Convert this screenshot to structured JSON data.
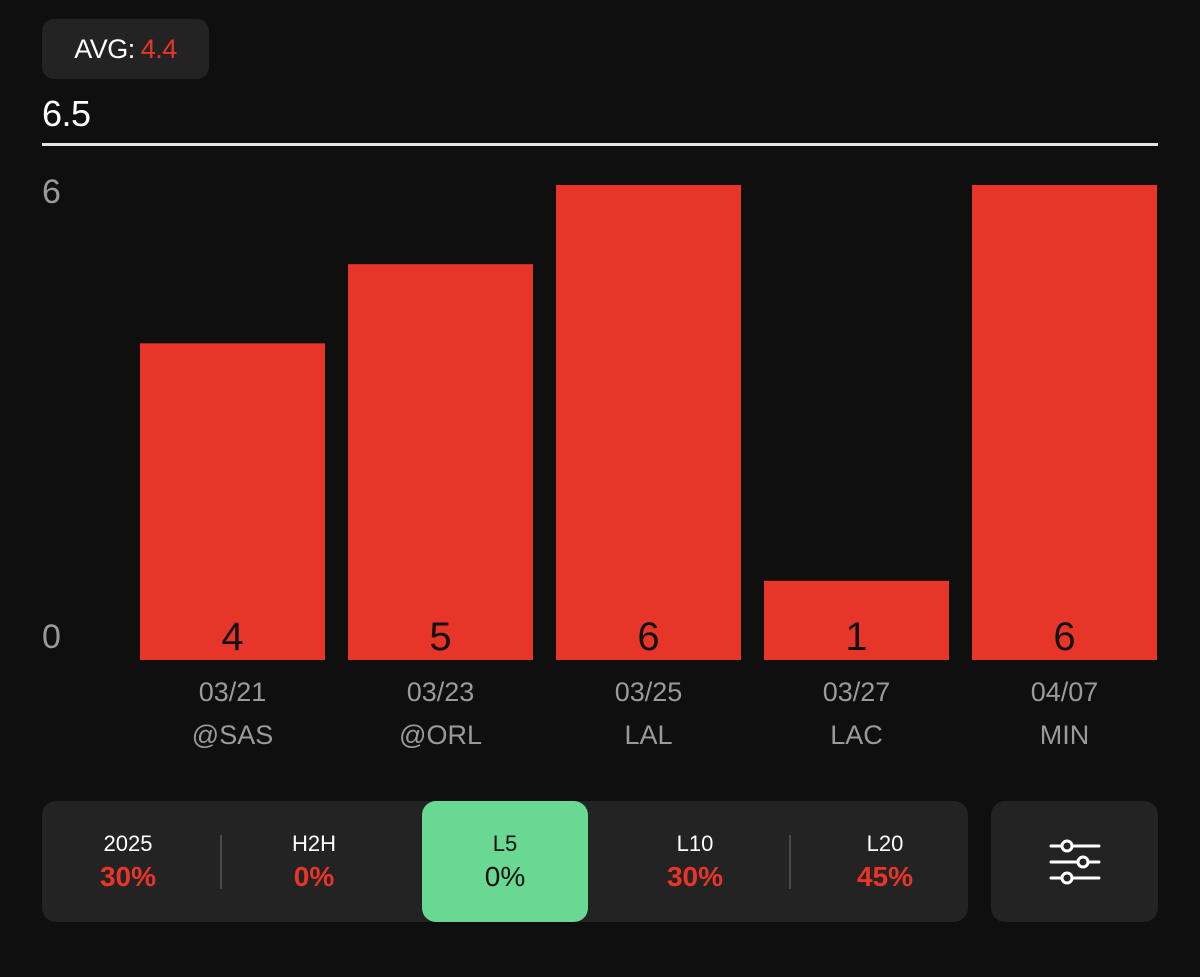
{
  "avg": {
    "label": "AVG:",
    "value": "4.4"
  },
  "line_value": "6.5",
  "colors": {
    "bar": "#e8352a",
    "background": "#0f0f0f",
    "panel": "#232323",
    "active_tab": "#69d893",
    "negative_text": "#e8352a",
    "axis_text": "#9a9a9a"
  },
  "chart_data": {
    "type": "bar",
    "categories": [
      "03/21",
      "03/23",
      "03/25",
      "03/27",
      "04/07"
    ],
    "opponents": [
      "@SAS",
      "@ORL",
      "LAL",
      "LAC",
      "MIN"
    ],
    "values": [
      4,
      5,
      6,
      1,
      6
    ],
    "value_labels": [
      "4",
      "5",
      "6",
      "1",
      "6"
    ],
    "ylim": [
      0,
      6
    ],
    "y_ticks": [
      "0",
      "6"
    ],
    "reference_line": 6.5,
    "grid": false
  },
  "filters": {
    "tabs": [
      {
        "label": "2025",
        "value": "30%",
        "active": false
      },
      {
        "label": "H2H",
        "value": "0%",
        "active": false
      },
      {
        "label": "L5",
        "value": "0%",
        "active": true
      },
      {
        "label": "L10",
        "value": "30%",
        "active": false
      },
      {
        "label": "L20",
        "value": "45%",
        "active": false
      }
    ],
    "settings_icon": "sliders-icon"
  }
}
